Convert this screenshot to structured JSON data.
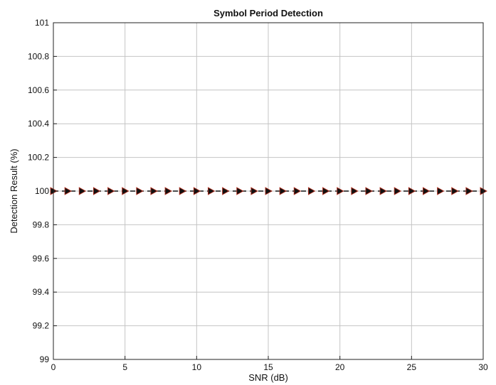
{
  "chart_data": {
    "type": "line",
    "title": "Symbol Period Detection",
    "xlabel": "SNR (dB)",
    "ylabel": "Detection Result (%)",
    "xlim": [
      0,
      30
    ],
    "ylim": [
      99,
      101
    ],
    "xticks": [
      0,
      5,
      10,
      15,
      20,
      25,
      30
    ],
    "xtick_labels": [
      "0",
      "5",
      "10",
      "15",
      "20",
      "25",
      "30"
    ],
    "yticks": [
      99,
      99.2,
      99.4,
      99.6,
      99.8,
      100,
      100.2,
      100.4,
      100.6,
      100.8,
      101
    ],
    "ytick_labels": [
      "99",
      "99.2",
      "99.4",
      "99.6",
      "99.8",
      "100",
      "100.2",
      "100.4",
      "100.6",
      "100.8",
      "101"
    ],
    "grid": true,
    "legend": "none",
    "series": [
      {
        "line_style": "dashed",
        "marker": "right-triangle",
        "line_color": "#111111",
        "marker_color": "#111111",
        "marker_edge_color": "#b03020",
        "x": [
          0,
          1,
          2,
          3,
          4,
          5,
          6,
          7,
          8,
          9,
          10,
          11,
          12,
          13,
          14,
          15,
          16,
          17,
          18,
          19,
          20,
          21,
          22,
          23,
          24,
          25,
          26,
          27,
          28,
          29,
          30
        ],
        "y": [
          100,
          100,
          100,
          100,
          100,
          100,
          100,
          100,
          100,
          100,
          100,
          100,
          100,
          100,
          100,
          100,
          100,
          100,
          100,
          100,
          100,
          100,
          100,
          100,
          100,
          100,
          100,
          100,
          100,
          100,
          100
        ]
      }
    ]
  }
}
